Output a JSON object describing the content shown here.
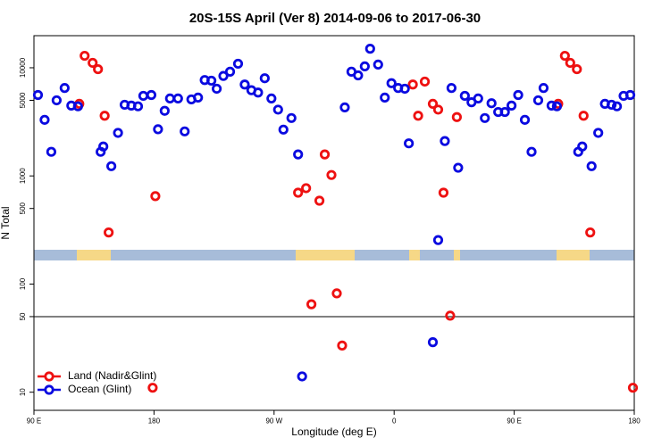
{
  "chart_data": {
    "type": "scatter",
    "title": "20S-15S April (Ver 8)   2014-09-06 to 2017-06-30",
    "x_label": "Longitude (deg E)",
    "y_label": "N Total",
    "log_y": true,
    "xlim": [
      90,
      540
    ],
    "xticks": [
      {
        "value": 90,
        "label": "90 E"
      },
      {
        "value": 180,
        "label": "180"
      },
      {
        "value": 270,
        "label": "90 W"
      },
      {
        "value": 360,
        "label": "0"
      },
      {
        "value": 450,
        "label": "90 E"
      },
      {
        "value": 540,
        "label": "180"
      }
    ],
    "ylim": [
      6.8,
      19800
    ],
    "yticks": [
      10,
      50,
      100,
      500,
      1000,
      5000,
      10000
    ],
    "reference_line": 50,
    "legend_position": "bottom-left",
    "series": [
      {
        "name": "Land (Nadir&Glint)",
        "color": "#ee1111",
        "x": [
          124,
          128,
          134,
          138,
          143,
          146,
          179,
          181,
          288,
          294,
          298,
          304,
          308,
          313,
          317,
          321,
          374,
          378,
          383,
          389,
          393,
          397,
          402,
          407,
          483,
          488,
          492,
          497,
          502,
          507,
          539
        ],
        "values": [
          4640,
          12900,
          11100,
          9700,
          3600,
          300,
          11,
          650,
          700,
          770,
          65,
          590,
          1580,
          1020,
          82,
          27,
          7000,
          3600,
          7450,
          4640,
          4100,
          700,
          51,
          3500,
          4640,
          12900,
          11100,
          9700,
          3600,
          300,
          11
        ]
      },
      {
        "name": "Ocean (Glint)",
        "color": "#0a0ae0",
        "x": [
          93,
          98,
          103,
          107,
          113,
          118,
          123,
          140,
          142,
          148,
          153,
          158,
          163,
          168,
          172,
          178,
          183,
          188,
          192,
          198,
          203,
          208,
          213,
          218,
          223,
          227,
          232,
          237,
          243,
          248,
          253,
          258,
          263,
          268,
          273,
          277,
          283,
          288,
          291,
          323,
          328,
          333,
          338,
          342,
          348,
          353,
          358,
          363,
          368,
          371,
          389,
          393,
          398,
          403,
          408,
          413,
          418,
          423,
          428,
          433,
          438,
          443,
          448,
          453,
          458,
          463,
          468,
          472,
          478,
          482,
          498,
          501,
          508,
          513,
          518,
          523,
          527,
          532,
          537
        ],
        "values": [
          5600,
          3300,
          1670,
          5000,
          6500,
          4470,
          4400,
          1670,
          1870,
          1230,
          2500,
          4550,
          4470,
          4400,
          5500,
          5600,
          2700,
          4000,
          5200,
          5200,
          2580,
          5100,
          5300,
          7700,
          7600,
          6400,
          8400,
          9200,
          10900,
          7000,
          6200,
          5900,
          8000,
          5200,
          4100,
          2680,
          3430,
          1580,
          14,
          4300,
          9200,
          8500,
          10300,
          15000,
          10700,
          5300,
          7200,
          6500,
          6400,
          2000,
          29,
          255,
          2100,
          6500,
          1190,
          5500,
          4800,
          5200,
          3430,
          4700,
          3900,
          3900,
          4470,
          5600,
          3300,
          1670,
          5000,
          6500,
          4470,
          4400,
          1670,
          1870,
          1230,
          2500,
          4640,
          4550,
          4400,
          5500,
          5600
        ]
      }
    ]
  }
}
